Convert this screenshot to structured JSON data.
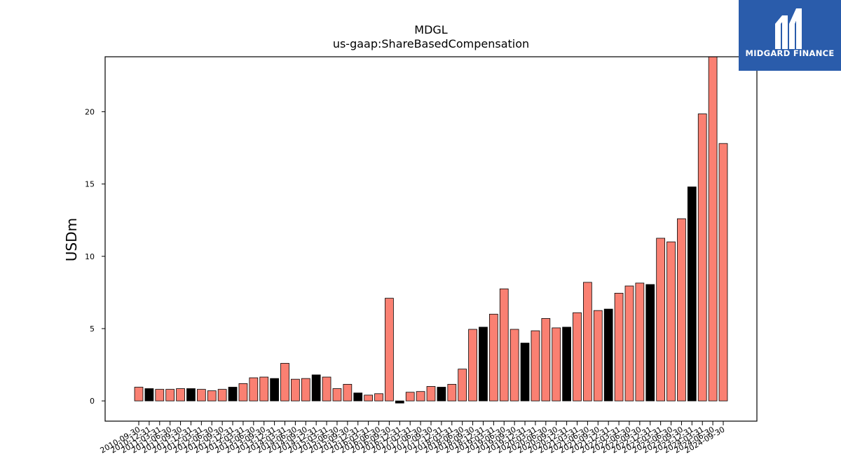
{
  "brand": {
    "name": "MIDGARD FINANCE",
    "bg_color": "#2a5cab"
  },
  "chart_data": {
    "type": "bar",
    "title": "MDGL",
    "subtitle": "us-gaap:ShareBasedCompensation",
    "xlabel": "",
    "ylabel": "USDm",
    "ylim": [
      -1.4,
      23.8
    ],
    "yticks": [
      0,
      5,
      10,
      15,
      20
    ],
    "grid": false,
    "colors": {
      "quarter": "#fa8072",
      "year_end": "#000000",
      "edge": "#000000"
    },
    "categories": [
      "2010-09-30",
      "2010-12-31",
      "2011-03-31",
      "2011-06-30",
      "2011-09-30",
      "2011-12-31",
      "2012-03-31",
      "2012-06-30",
      "2012-09-30",
      "2012-12-31",
      "2013-03-31",
      "2013-06-30",
      "2013-09-30",
      "2013-12-31",
      "2014-03-31",
      "2014-06-30",
      "2014-09-30",
      "2014-12-31",
      "2015-03-31",
      "2015-06-30",
      "2015-09-30",
      "2015-12-31",
      "2016-03-31",
      "2016-06-30",
      "2016-09-30",
      "2016-12-31",
      "2017-03-31",
      "2017-06-30",
      "2017-09-30",
      "2017-12-31",
      "2018-03-31",
      "2018-06-30",
      "2018-09-30",
      "2018-12-31",
      "2019-03-31",
      "2019-06-30",
      "2019-09-30",
      "2019-12-31",
      "2020-03-31",
      "2020-06-30",
      "2020-09-30",
      "2020-12-31",
      "2021-03-31",
      "2021-06-30",
      "2021-09-30",
      "2021-12-31",
      "2022-03-31",
      "2022-06-30",
      "2022-09-30",
      "2022-12-31",
      "2023-03-31",
      "2023-06-30",
      "2023-09-30",
      "2023-12-31",
      "2024-03-31",
      "2024-06-30",
      "2024-09-30"
    ],
    "values": [
      0.95,
      0.85,
      0.8,
      0.8,
      0.85,
      0.85,
      0.8,
      0.7,
      0.8,
      0.95,
      1.2,
      1.6,
      1.65,
      1.55,
      2.6,
      1.5,
      1.55,
      1.8,
      1.65,
      0.85,
      1.15,
      0.55,
      0.4,
      0.5,
      7.1,
      -0.15,
      0.6,
      0.65,
      1.0,
      0.95,
      1.15,
      2.2,
      4.95,
      5.1,
      6.0,
      7.75,
      4.95,
      4.0,
      4.85,
      5.7,
      5.05,
      5.1,
      6.1,
      8.2,
      6.25,
      6.35,
      7.45,
      7.95,
      8.15,
      8.05,
      11.25,
      11.0,
      12.6,
      14.8,
      19.85,
      23.8,
      17.8
    ]
  }
}
